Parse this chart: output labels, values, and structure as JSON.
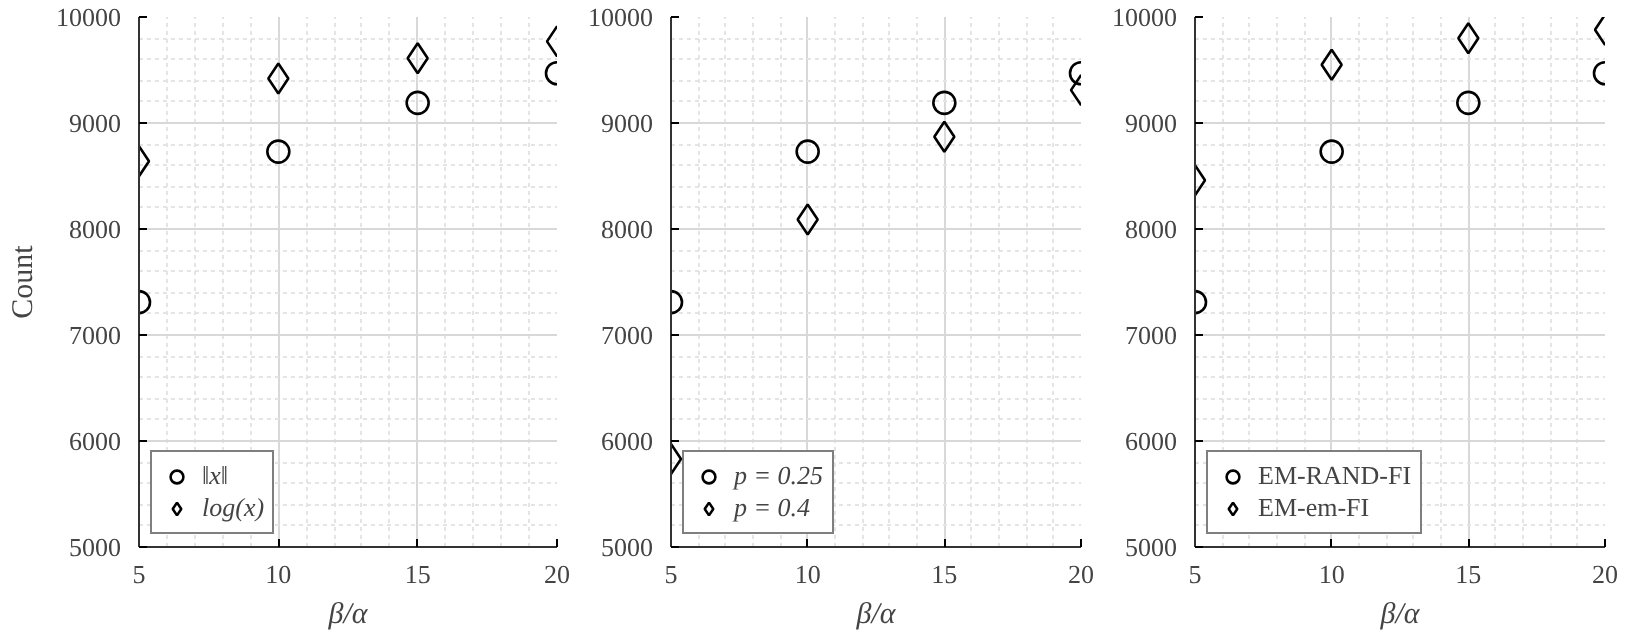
{
  "chart_data": [
    {
      "type": "scatter",
      "xlabel": "β/α",
      "ylabel": "Count",
      "x": [
        5,
        10,
        15,
        20
      ],
      "xlim": [
        5,
        20
      ],
      "xticks": [
        5,
        10,
        15,
        20
      ],
      "ylim": [
        5000,
        10000
      ],
      "yticks": [
        5000,
        6000,
        7000,
        8000,
        9000,
        10000
      ],
      "grid": true,
      "legend": "bottom left",
      "series": [
        {
          "name": "‖x‖",
          "color": "#000000",
          "marker": "circle",
          "values": [
            7310,
            8730,
            9190,
            9470
          ]
        },
        {
          "name": "log(x)",
          "color": "#000000",
          "marker": "diamond",
          "values": [
            8640,
            9420,
            9610,
            9770
          ]
        }
      ]
    },
    {
      "type": "scatter",
      "xlabel": "β/α",
      "x": [
        5,
        10,
        15,
        20
      ],
      "xlim": [
        5,
        20
      ],
      "xticks": [
        5,
        10,
        15,
        20
      ],
      "ylim": [
        5000,
        10000
      ],
      "yticks": [
        5000,
        6000,
        7000,
        8000,
        9000,
        10000
      ],
      "grid": true,
      "legend": "bottom left",
      "series": [
        {
          "name": "p = 0.25",
          "color": "#000000",
          "marker": "circle",
          "values": [
            7310,
            8730,
            9190,
            9470
          ]
        },
        {
          "name": "p = 0.4",
          "color": "#000000",
          "marker": "diamond",
          "values": [
            5830,
            8090,
            8870,
            9310
          ]
        }
      ]
    },
    {
      "type": "scatter",
      "xlabel": "β/α",
      "x": [
        5,
        10,
        15,
        20
      ],
      "xlim": [
        5,
        20
      ],
      "xticks": [
        5,
        10,
        15,
        20
      ],
      "ylim": [
        5000,
        10000
      ],
      "yticks": [
        5000,
        6000,
        7000,
        8000,
        9000,
        10000
      ],
      "grid": true,
      "legend": "bottom left",
      "series": [
        {
          "name": "EM-RAND-FI",
          "color": "#000000",
          "marker": "circle",
          "values": [
            7310,
            8730,
            9190,
            9470
          ]
        },
        {
          "name": "EM-em-FI",
          "color": "#000000",
          "marker": "diamond",
          "values": [
            8460,
            9550,
            9800,
            9880
          ]
        }
      ]
    }
  ]
}
